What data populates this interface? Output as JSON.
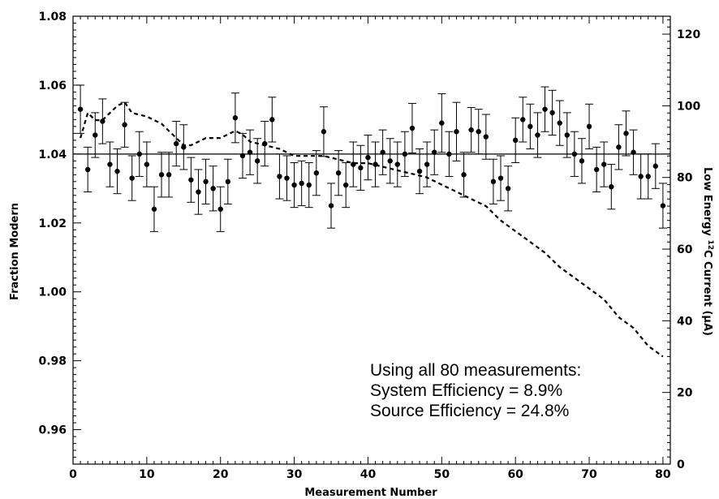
{
  "chart_data": {
    "type": "scatter",
    "title": "",
    "xlabel": "Measurement Number",
    "ylabel": "Fraction Modern",
    "y2label_parts": [
      "Low Energy ",
      "12",
      "C Current (",
      "μ",
      "A)"
    ],
    "xlim": [
      0,
      81
    ],
    "ylim": [
      0.95,
      1.08
    ],
    "y2lim": [
      0,
      125
    ],
    "xticks": [
      0,
      10,
      20,
      30,
      40,
      50,
      60,
      70,
      80
    ],
    "yticks": [
      0.96,
      0.98,
      1.0,
      1.02,
      1.04,
      1.06,
      1.08
    ],
    "ytick_labels": [
      "0.96",
      "0.98",
      "1.00",
      "1.02",
      "1.04",
      "1.06",
      "1.08"
    ],
    "y2ticks": [
      0,
      20,
      40,
      60,
      80,
      100,
      120
    ],
    "mean_line": 1.04,
    "annotation": [
      "Using all 80 measurements:",
      "System Efficiency = 8.9%",
      "Source Efficiency = 24.8%"
    ],
    "series": [
      {
        "style": "points-with-error-bars",
        "axis": "left",
        "x": [
          1,
          2,
          3,
          4,
          5,
          6,
          7,
          8,
          9,
          10,
          11,
          12,
          13,
          14,
          15,
          16,
          17,
          18,
          19,
          20,
          21,
          22,
          23,
          24,
          25,
          26,
          27,
          28,
          29,
          30,
          31,
          32,
          33,
          34,
          35,
          36,
          37,
          38,
          39,
          40,
          41,
          42,
          43,
          44,
          45,
          46,
          47,
          48,
          49,
          50,
          51,
          52,
          53,
          54,
          55,
          56,
          57,
          58,
          59,
          60,
          61,
          62,
          63,
          64,
          65,
          66,
          67,
          68,
          69,
          70,
          71,
          72,
          73,
          74,
          75,
          76,
          77,
          78,
          79,
          80
        ],
        "y": [
          1.053,
          1.0355,
          1.0455,
          1.0495,
          1.037,
          1.035,
          1.0485,
          1.033,
          1.04,
          1.037,
          1.024,
          1.034,
          1.034,
          1.043,
          1.042,
          1.0325,
          1.029,
          1.032,
          1.03,
          1.024,
          1.032,
          1.0505,
          1.0395,
          1.0405,
          1.038,
          1.043,
          1.05,
          1.0335,
          1.033,
          1.031,
          1.0315,
          1.031,
          1.0345,
          1.0465,
          1.025,
          1.0345,
          1.031,
          1.037,
          1.036,
          1.039,
          1.037,
          1.0405,
          1.038,
          1.037,
          1.04,
          1.0475,
          1.035,
          1.037,
          1.0405,
          1.049,
          1.04,
          1.0465,
          1.034,
          1.047,
          1.0465,
          1.045,
          1.032,
          1.033,
          1.03,
          1.044,
          1.05,
          1.048,
          1.0455,
          1.053,
          1.052,
          1.049,
          1.0455,
          1.04,
          1.038,
          1.048,
          1.0355,
          1.037,
          1.0305,
          1.042,
          1.046,
          1.0405,
          1.0335,
          1.0335,
          1.0365,
          1.025
        ],
        "err": [
          0.007,
          0.0065,
          0.0065,
          0.0065,
          0.0065,
          0.0065,
          0.0065,
          0.0065,
          0.0065,
          0.0065,
          0.0065,
          0.0065,
          0.0065,
          0.0065,
          0.0065,
          0.0065,
          0.0065,
          0.0065,
          0.0065,
          0.0065,
          0.0065,
          0.0072,
          0.0065,
          0.0065,
          0.0065,
          0.0065,
          0.0065,
          0.0065,
          0.0065,
          0.0065,
          0.0065,
          0.0065,
          0.0065,
          0.0072,
          0.0065,
          0.0065,
          0.0065,
          0.0065,
          0.0065,
          0.0065,
          0.0065,
          0.0065,
          0.0065,
          0.0065,
          0.0065,
          0.0072,
          0.0065,
          0.0065,
          0.0065,
          0.0085,
          0.0065,
          0.0085,
          0.0065,
          0.0065,
          0.0065,
          0.0065,
          0.0065,
          0.0065,
          0.0065,
          0.0065,
          0.0065,
          0.0065,
          0.0065,
          0.0065,
          0.0065,
          0.0065,
          0.0065,
          0.0065,
          0.0065,
          0.0065,
          0.0065,
          0.0065,
          0.0065,
          0.0065,
          0.0065,
          0.0065,
          0.0065,
          0.0065,
          0.0065,
          0.0065
        ]
      },
      {
        "style": "dashed-line",
        "axis": "right",
        "x": [
          1,
          2,
          3,
          4,
          5,
          6,
          7,
          8,
          10,
          12,
          14,
          15,
          16,
          17,
          18,
          20,
          21,
          22,
          23,
          24,
          26,
          28,
          30,
          34,
          36,
          38,
          40,
          42,
          44,
          46,
          48,
          50,
          52,
          54,
          56,
          58,
          60,
          62,
          64,
          66,
          68,
          70,
          72,
          74,
          76,
          78,
          80
        ],
        "y": [
          91,
          98,
          96,
          96,
          98,
          100,
          101,
          98,
          97,
          95,
          91,
          89,
          89,
          90,
          91,
          91,
          92,
          93,
          92,
          90,
          89,
          88,
          86,
          86,
          85,
          84,
          84,
          83,
          82,
          81,
          80,
          78,
          76,
          74,
          72,
          68,
          65,
          62,
          59,
          55,
          52,
          49,
          46,
          41,
          38,
          33,
          30
        ]
      }
    ]
  }
}
